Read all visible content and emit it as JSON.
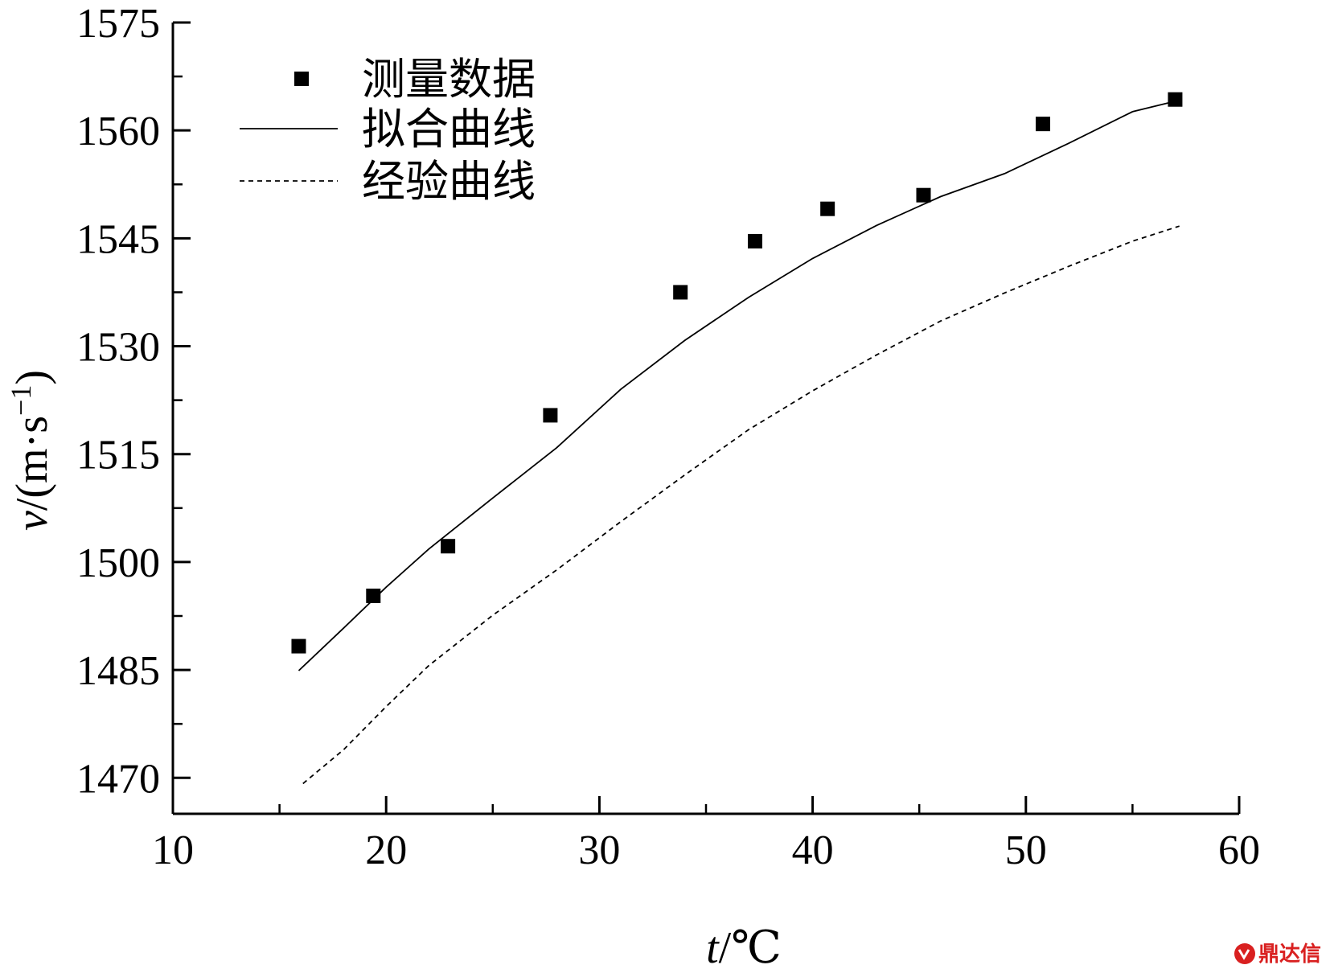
{
  "chart_data": {
    "type": "scatter",
    "xlabel_var": "t",
    "xlabel_unit": "/℃",
    "ylabel_var": "v",
    "ylabel_unit": "/(m·s",
    "ylabel_exp": "−1",
    "ylabel_close": ")",
    "xlim": [
      10,
      60
    ],
    "ylim": [
      1465,
      1575
    ],
    "xticks": [
      10,
      20,
      30,
      40,
      50,
      60
    ],
    "yticks": [
      1470,
      1485,
      1500,
      1515,
      1530,
      1545,
      1560,
      1575
    ],
    "grid": false,
    "legend_position": "top-left",
    "series": [
      {
        "name": "测量数据",
        "kind": "markers",
        "marker": "square",
        "color": "#000000",
        "x": [
          15.9,
          19.4,
          22.9,
          27.7,
          33.8,
          37.3,
          40.7,
          45.2,
          50.8,
          57.0
        ],
        "y": [
          1488.3,
          1495.3,
          1502.2,
          1520.4,
          1537.5,
          1544.6,
          1549.1,
          1551.0,
          1560.9,
          1564.3
        ]
      },
      {
        "name": "拟合曲线",
        "kind": "line",
        "style": "solid",
        "color": "#000000",
        "x": [
          15.9,
          18,
          20,
          22,
          25,
          28,
          31,
          34,
          37,
          40,
          43,
          46,
          49,
          52,
          55,
          57.2
        ],
        "y": [
          1484.9,
          1490.8,
          1496.5,
          1501.8,
          1508.9,
          1515.9,
          1524.0,
          1530.8,
          1536.8,
          1542.2,
          1546.8,
          1550.8,
          1554.0,
          1558.2,
          1562.6,
          1564.2
        ]
      },
      {
        "name": "经验曲线",
        "kind": "line",
        "style": "dashed",
        "color": "#000000",
        "x": [
          16.1,
          18,
          20,
          22,
          25,
          28,
          31,
          34,
          37,
          40,
          43,
          46,
          49,
          52,
          55,
          57.2
        ],
        "y": [
          1469.2,
          1473.9,
          1479.9,
          1485.6,
          1492.6,
          1498.9,
          1505.6,
          1512.1,
          1518.4,
          1523.8,
          1528.8,
          1533.5,
          1537.4,
          1541.1,
          1544.6,
          1546.7
        ]
      }
    ]
  },
  "watermark": {
    "text": "鼎达信",
    "color": "#d92020"
  }
}
